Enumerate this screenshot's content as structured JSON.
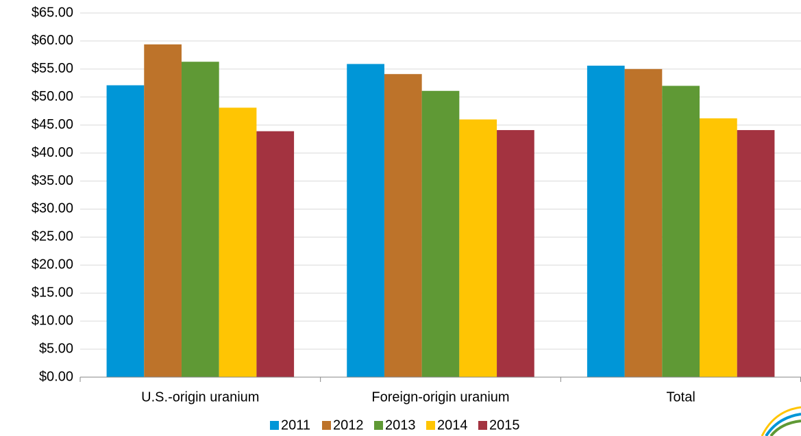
{
  "chart_data": {
    "type": "bar",
    "categories": [
      "U.S.-origin uranium",
      "Foreign-origin uranium",
      "Total"
    ],
    "series": [
      {
        "name": "2011",
        "color": "#0096d7",
        "values": [
          52.1,
          55.9,
          55.6
        ]
      },
      {
        "name": "2012",
        "color": "#bd732a",
        "values": [
          59.4,
          54.1,
          55.0
        ]
      },
      {
        "name": "2013",
        "color": "#5f9935",
        "values": [
          56.3,
          51.1,
          52.0
        ]
      },
      {
        "name": "2014",
        "color": "#ffc503",
        "values": [
          48.1,
          46.0,
          46.2
        ]
      },
      {
        "name": "2015",
        "color": "#a33340",
        "values": [
          43.9,
          44.1,
          44.1
        ]
      }
    ],
    "ylim": [
      0,
      65
    ],
    "yticks": [
      {
        "value": 0,
        "label": "$0.00"
      },
      {
        "value": 5,
        "label": "$5.00"
      },
      {
        "value": 10,
        "label": "$10.00"
      },
      {
        "value": 15,
        "label": "$15.00"
      },
      {
        "value": 20,
        "label": "$20.00"
      },
      {
        "value": 25,
        "label": "$25.00"
      },
      {
        "value": 30,
        "label": "$30.00"
      },
      {
        "value": 35,
        "label": "$35.00"
      },
      {
        "value": 40,
        "label": "$40.00"
      },
      {
        "value": 45,
        "label": "$45.00"
      },
      {
        "value": 50,
        "label": "$50.00"
      },
      {
        "value": 55,
        "label": "$55.00"
      },
      {
        "value": 60,
        "label": "$60.00"
      },
      {
        "value": 65,
        "label": "$65.00"
      }
    ],
    "grid": true,
    "legend": "bottom"
  }
}
